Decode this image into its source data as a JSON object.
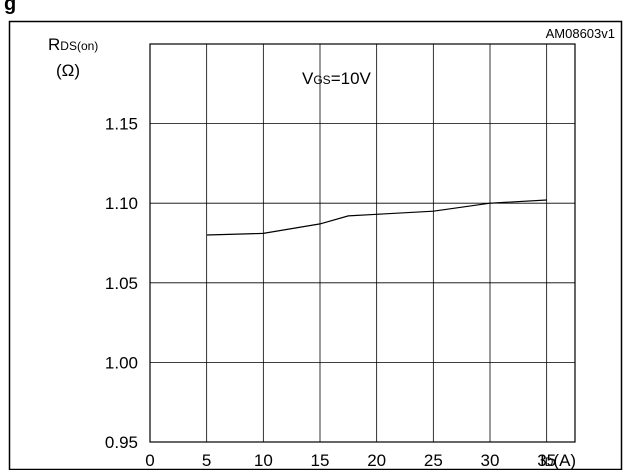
{
  "header": {
    "title_fragment": "g"
  },
  "chart_data": {
    "type": "line",
    "figure_id": "AM08603v1",
    "ylabel_main": "R",
    "ylabel_sub": "DS(on)",
    "yunit": "(Ω)",
    "xlabel_main": "I",
    "xlabel_sub": "D",
    "xunit": "(A)",
    "annotation_main": "V",
    "annotation_sub": "GS",
    "annotation_value": "=10V",
    "xlim": [
      0,
      37.5
    ],
    "ylim": [
      0.95,
      1.2
    ],
    "xticks": [
      0,
      5,
      10,
      15,
      20,
      25,
      30,
      35
    ],
    "yticks": [
      "0.95",
      "1.00",
      "1.05",
      "1.10",
      "1.15"
    ],
    "grid": true,
    "series": [
      {
        "x": [
          5,
          10,
          15,
          17.5,
          20,
          25,
          30,
          35
        ],
        "y": [
          1.08,
          1.081,
          1.087,
          1.092,
          1.093,
          1.095,
          1.1,
          1.102
        ]
      }
    ]
  }
}
